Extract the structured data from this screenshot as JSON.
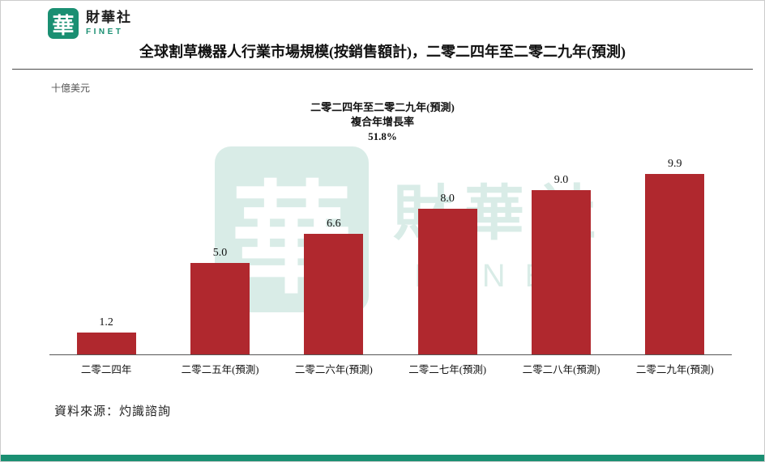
{
  "brand": {
    "logo_char": "華",
    "name": "財華社",
    "sub": "FINET"
  },
  "title": "全球割草機器人行業市場規模(按銷售額計)，二零二四年至二零二九年(預測)",
  "unit_label": "十億美元",
  "annotation": {
    "line1": "二零二四年至二零二九年(預測)",
    "line2": "複合年增長率",
    "line3": "51.8%"
  },
  "chart_data": {
    "type": "bar",
    "title": "全球割草機器人行業市場規模(按銷售額計)，二零二四年至二零二九年(預測)",
    "categories": [
      "二零二四年",
      "二零二五年(預測)",
      "二零二六年(預測)",
      "二零二七年(預測)",
      "二零二八年(預測)",
      "二零二九年(預測)"
    ],
    "values": [
      1.2,
      5.0,
      6.6,
      8.0,
      9.0,
      9.9
    ],
    "labels": [
      "1.2",
      "5.0",
      "6.6",
      "8.0",
      "9.0",
      "9.9"
    ],
    "xlabel": "",
    "ylabel": "十億美元",
    "ylim": [
      0,
      10.7
    ],
    "grid": "off",
    "legend": "none",
    "bar_color": "#b0282e",
    "annotation": "二零二四年至二零二九年(預測) 複合年增長率 51.8%"
  },
  "source": "資料來源：灼識諮詢",
  "watermark": {
    "logo_char": "華",
    "text1": "財華社",
    "text2": "FINET"
  },
  "colors": {
    "bar": "#b0282e",
    "brand_green": "#1a8f72",
    "axis": "#555555"
  }
}
